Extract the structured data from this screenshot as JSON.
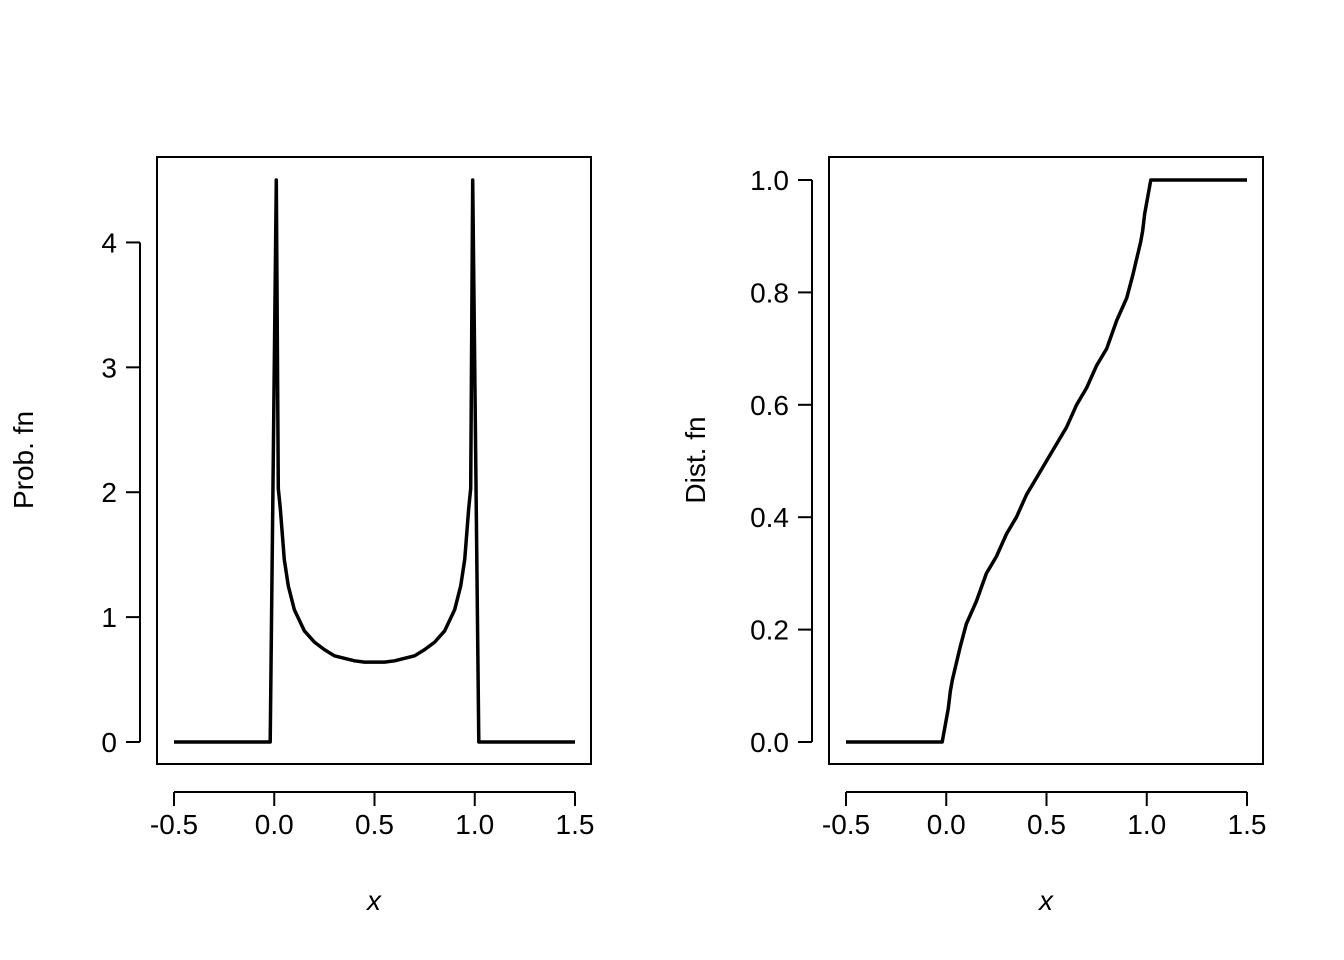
{
  "chart_data": [
    {
      "type": "line",
      "title": "",
      "xlabel": "x",
      "ylabel": "Prob. fn",
      "xlim": [
        -0.5,
        1.5
      ],
      "ylim": [
        0,
        4.5
      ],
      "xticks": [
        -0.5,
        0.0,
        0.5,
        1.0,
        1.5
      ],
      "xtick_labels": [
        "-0.5",
        "0.0",
        "0.5",
        "1.0",
        "1.5"
      ],
      "yticks": [
        0,
        1,
        2,
        3,
        4
      ],
      "ytick_labels": [
        "0",
        "1",
        "2",
        "3",
        "4"
      ],
      "grid": false,
      "line_color": "#000000",
      "series": [
        {
          "x": [
            -0.5,
            -0.02,
            0.01,
            0.02,
            0.03,
            0.05,
            0.07,
            0.1,
            0.15,
            0.2,
            0.25,
            0.3,
            0.35,
            0.4,
            0.45,
            0.5,
            0.55,
            0.6,
            0.65,
            0.7,
            0.75,
            0.8,
            0.85,
            0.9,
            0.93,
            0.95,
            0.97,
            0.98,
            0.99,
            1.02,
            1.5
          ],
          "y": [
            0,
            0,
            4.5,
            2.03,
            1.87,
            1.46,
            1.25,
            1.06,
            0.89,
            0.8,
            0.74,
            0.69,
            0.67,
            0.65,
            0.64,
            0.64,
            0.64,
            0.65,
            0.67,
            0.69,
            0.74,
            0.8,
            0.89,
            1.06,
            1.25,
            1.46,
            1.87,
            2.03,
            4.5,
            0,
            0
          ]
        }
      ]
    },
    {
      "type": "line",
      "title": "",
      "xlabel": "x",
      "ylabel": "Dist. fn",
      "xlim": [
        -0.5,
        1.5
      ],
      "ylim": [
        0,
        1
      ],
      "xticks": [
        -0.5,
        0.0,
        0.5,
        1.0,
        1.5
      ],
      "xtick_labels": [
        "-0.5",
        "0.0",
        "0.5",
        "1.0",
        "1.5"
      ],
      "yticks": [
        0,
        0.2,
        0.4,
        0.6,
        0.8,
        1.0
      ],
      "ytick_labels": [
        "0.0",
        "0.2",
        "0.4",
        "0.6",
        "0.8",
        "1.0"
      ],
      "grid": false,
      "line_color": "#000000",
      "series": [
        {
          "x": [
            -0.5,
            -0.02,
            0.01,
            0.02,
            0.03,
            0.05,
            0.07,
            0.1,
            0.15,
            0.2,
            0.25,
            0.3,
            0.35,
            0.4,
            0.45,
            0.5,
            0.55,
            0.6,
            0.65,
            0.7,
            0.75,
            0.8,
            0.85,
            0.9,
            0.93,
            0.95,
            0.97,
            0.98,
            0.99,
            1.02,
            1.5
          ],
          "y": [
            0,
            0,
            0.06,
            0.09,
            0.11,
            0.14,
            0.17,
            0.21,
            0.25,
            0.3,
            0.33,
            0.37,
            0.4,
            0.44,
            0.47,
            0.5,
            0.53,
            0.56,
            0.6,
            0.63,
            0.67,
            0.7,
            0.75,
            0.79,
            0.83,
            0.86,
            0.89,
            0.91,
            0.94,
            1.0,
            1.0
          ]
        }
      ]
    }
  ]
}
